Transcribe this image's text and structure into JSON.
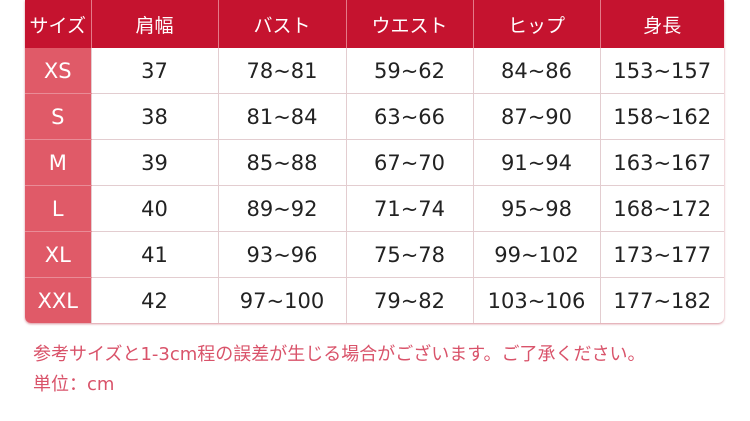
{
  "table": {
    "headers": [
      "サイズ",
      "肩幅",
      "バスト",
      "ウエスト",
      "ヒップ",
      "身長"
    ],
    "rows": [
      [
        "XS",
        "37",
        "78~81",
        "59~62",
        "84~86",
        "153~157"
      ],
      [
        "S",
        "38",
        "81~84",
        "63~66",
        "87~90",
        "158~162"
      ],
      [
        "M",
        "39",
        "85~88",
        "67~70",
        "91~94",
        "163~167"
      ],
      [
        "L",
        "40",
        "89~92",
        "71~74",
        "95~98",
        "168~172"
      ],
      [
        "XL",
        "41",
        "93~96",
        "75~78",
        "99~102",
        "173~177"
      ],
      [
        "XXL",
        "42",
        "97~100",
        "79~82",
        "103~106",
        "177~182"
      ]
    ]
  },
  "notes": {
    "disclaimer": "参考サイズと1-3cm程の誤差が生じる場合がございます。ご了承ください。",
    "unit": "単位：cm"
  },
  "colors": {
    "header": "#c5132f",
    "size_column": "#e05a68",
    "note_text": "#d9536a"
  }
}
